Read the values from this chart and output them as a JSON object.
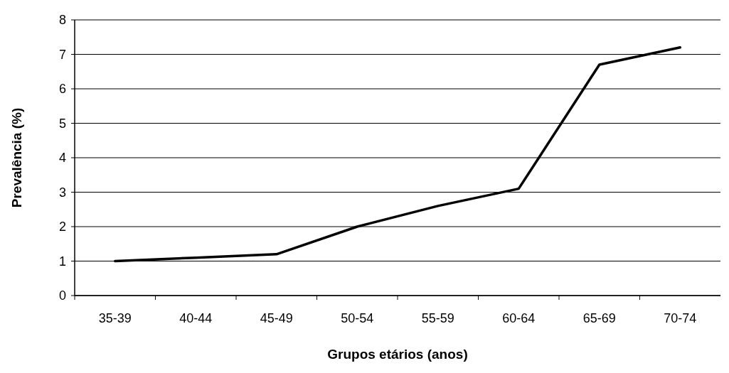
{
  "chart_data": {
    "type": "line",
    "xlabel": "Grupos etários (anos)",
    "ylabel": "Prevalência (%)",
    "categories": [
      "35-39",
      "40-44",
      "45-49",
      "50-54",
      "55-59",
      "60-64",
      "65-69",
      "70-74"
    ],
    "series": [
      {
        "color": "#000000",
        "values": [
          1.0,
          1.1,
          1.2,
          2.0,
          2.6,
          3.1,
          6.7,
          7.2
        ]
      }
    ],
    "ylim": [
      0,
      8
    ],
    "yticks": [
      0,
      1,
      2,
      3,
      4,
      5,
      6,
      7,
      8
    ],
    "grid": "y",
    "marker": "none",
    "line_style": "solid"
  }
}
